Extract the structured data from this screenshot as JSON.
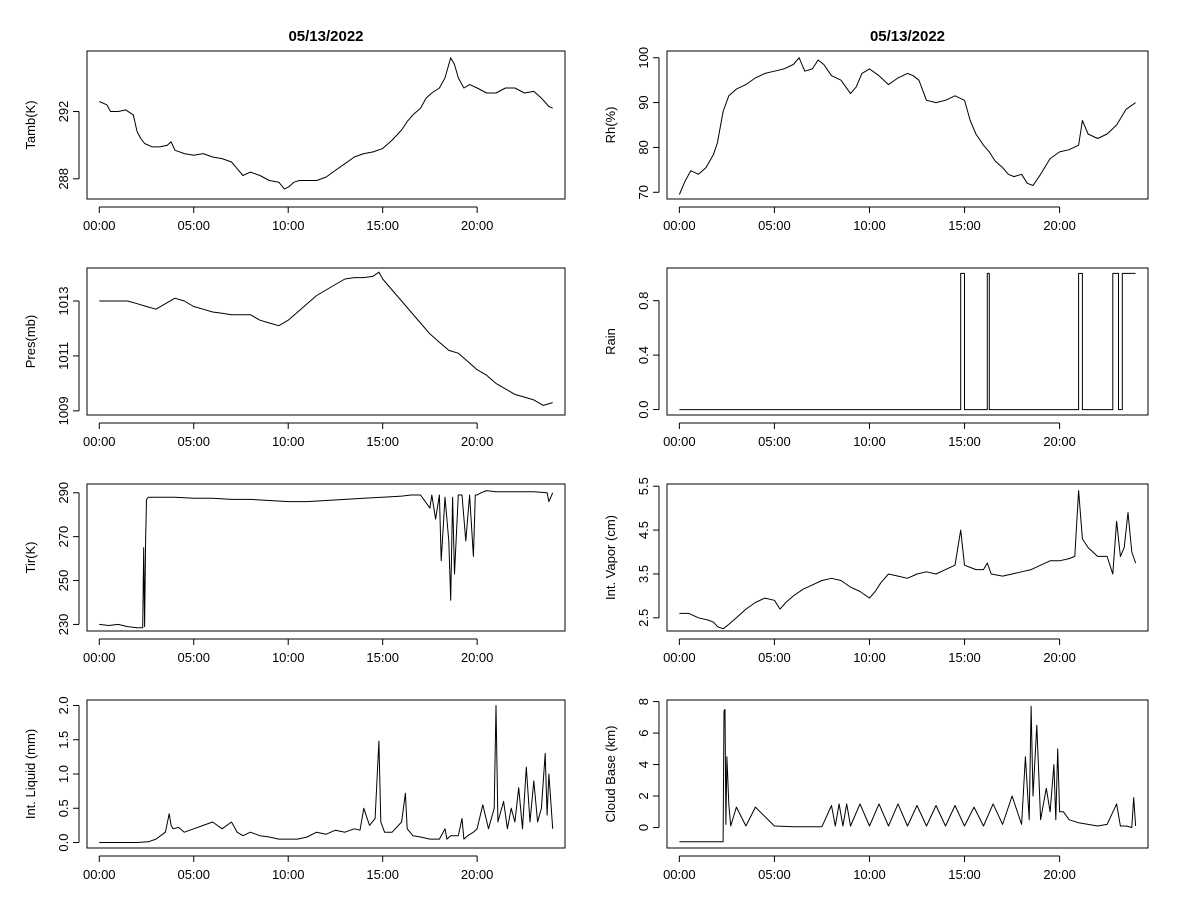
{
  "chart_data": [
    {
      "type": "line",
      "title": "05/13/2022",
      "ylabel": "Tamb(K)",
      "x_ticks": [
        "00:00",
        "05:00",
        "10:00",
        "15:00",
        "20:00"
      ],
      "y_ticks": [
        288,
        292
      ],
      "ylim": [
        286.8,
        295.6
      ],
      "x": [
        0.0,
        0.4,
        0.6,
        1.0,
        1.4,
        1.8,
        2.0,
        2.2,
        2.4,
        2.8,
        3.2,
        3.6,
        3.8,
        4.0,
        4.5,
        5.0,
        5.5,
        6.0,
        6.5,
        7.0,
        7.3,
        7.6,
        8.0,
        8.5,
        9.0,
        9.5,
        9.8,
        10.0,
        10.3,
        10.6,
        11.0,
        11.5,
        12.0,
        12.5,
        13.0,
        13.5,
        14.0,
        14.5,
        15.0,
        15.5,
        16.0,
        16.3,
        16.6,
        17.0,
        17.3,
        17.6,
        18.0,
        18.3,
        18.6,
        18.8,
        19.0,
        19.3,
        19.6,
        20.0,
        20.5,
        21.0,
        21.5,
        22.0,
        22.5,
        23.0,
        23.4,
        23.8,
        24.0
      ],
      "series": [
        {
          "values": [
            292.6,
            292.4,
            292.0,
            292.0,
            292.1,
            291.8,
            290.8,
            290.4,
            290.1,
            289.9,
            289.9,
            290.0,
            290.2,
            289.7,
            289.5,
            289.4,
            289.5,
            289.3,
            289.2,
            289.0,
            288.6,
            288.2,
            288.4,
            288.2,
            287.9,
            287.8,
            287.4,
            287.5,
            287.8,
            287.9,
            287.9,
            287.9,
            288.1,
            288.5,
            288.9,
            289.3,
            289.5,
            289.6,
            289.8,
            290.3,
            290.9,
            291.4,
            291.8,
            292.2,
            292.8,
            293.1,
            293.4,
            294.0,
            295.2,
            294.8,
            294.0,
            293.4,
            293.6,
            293.4,
            293.1,
            293.1,
            293.4,
            293.4,
            293.1,
            293.2,
            292.8,
            292.3,
            292.2
          ]
        }
      ]
    },
    {
      "type": "line",
      "title": "05/13/2022",
      "ylabel": "Rh(%)",
      "x_ticks": [
        "00:00",
        "05:00",
        "10:00",
        "15:00",
        "20:00"
      ],
      "y_ticks": [
        70,
        80,
        90,
        100
      ],
      "ylim": [
        68.5,
        101.5
      ],
      "x": [
        0.0,
        0.3,
        0.6,
        1.0,
        1.4,
        1.8,
        2.0,
        2.3,
        2.6,
        3.0,
        3.5,
        4.0,
        4.5,
        5.0,
        5.5,
        6.0,
        6.3,
        6.6,
        7.0,
        7.3,
        7.6,
        8.0,
        8.5,
        9.0,
        9.3,
        9.6,
        10.0,
        10.5,
        11.0,
        11.5,
        12.0,
        12.3,
        12.6,
        13.0,
        13.5,
        14.0,
        14.5,
        15.0,
        15.3,
        15.6,
        16.0,
        16.3,
        16.6,
        17.0,
        17.3,
        17.6,
        18.0,
        18.3,
        18.6,
        19.0,
        19.5,
        20.0,
        20.5,
        21.0,
        21.2,
        21.5,
        22.0,
        22.5,
        23.0,
        23.5,
        24.0
      ],
      "series": [
        {
          "values": [
            69.5,
            72.5,
            74.8,
            74.0,
            75.5,
            78.5,
            81.0,
            88.0,
            91.5,
            93.0,
            94.0,
            95.5,
            96.5,
            97.0,
            97.5,
            98.5,
            100.0,
            97.0,
            97.5,
            99.5,
            98.5,
            96.0,
            95.0,
            92.0,
            93.5,
            96.5,
            97.5,
            96.0,
            94.0,
            95.5,
            96.5,
            96.0,
            95.0,
            90.5,
            90.0,
            90.5,
            91.5,
            90.5,
            86.0,
            83.0,
            80.5,
            79.0,
            77.0,
            75.5,
            74.0,
            73.5,
            74.0,
            72.0,
            71.5,
            74.0,
            77.5,
            79.0,
            79.5,
            80.5,
            86.0,
            83.0,
            82.0,
            83.0,
            85.0,
            88.5,
            90.0
          ]
        }
      ]
    },
    {
      "type": "line",
      "ylabel": "Pres(mb)",
      "x_ticks": [
        "00:00",
        "05:00",
        "10:00",
        "15:00",
        "20:00"
      ],
      "y_ticks": [
        1009,
        1011,
        1013
      ],
      "ylim": [
        1008.85,
        1014.2
      ],
      "x": [
        0.0,
        0.5,
        1.0,
        1.5,
        2.0,
        2.5,
        3.0,
        3.5,
        4.0,
        4.5,
        5.0,
        5.5,
        6.0,
        6.5,
        7.0,
        7.5,
        8.0,
        8.5,
        9.0,
        9.5,
        10.0,
        10.5,
        11.0,
        11.5,
        12.0,
        12.5,
        13.0,
        13.5,
        14.0,
        14.5,
        14.8,
        15.0,
        15.5,
        16.0,
        16.5,
        17.0,
        17.5,
        18.0,
        18.5,
        19.0,
        19.5,
        20.0,
        20.5,
        21.0,
        21.5,
        22.0,
        22.5,
        23.0,
        23.5,
        24.0
      ],
      "series": [
        {
          "values": [
            1013.0,
            1013.0,
            1013.0,
            1013.0,
            1012.9,
            1012.8,
            1012.7,
            1012.9,
            1013.1,
            1013.0,
            1012.8,
            1012.7,
            1012.6,
            1012.55,
            1012.5,
            1012.5,
            1012.5,
            1012.3,
            1012.2,
            1012.1,
            1012.3,
            1012.6,
            1012.9,
            1013.2,
            1013.4,
            1013.6,
            1013.8,
            1013.85,
            1013.85,
            1013.9,
            1014.05,
            1013.8,
            1013.4,
            1013.0,
            1012.6,
            1012.2,
            1011.8,
            1011.5,
            1011.2,
            1011.1,
            1010.8,
            1010.5,
            1010.3,
            1010.0,
            1009.8,
            1009.6,
            1009.5,
            1009.4,
            1009.2,
            1009.3
          ]
        }
      ]
    },
    {
      "type": "line",
      "ylabel": "Rain",
      "x_ticks": [
        "00:00",
        "05:00",
        "10:00",
        "15:00",
        "20:00"
      ],
      "y_ticks": [
        0.0,
        0.4,
        0.8
      ],
      "ylim": [
        -0.04,
        1.04
      ],
      "x": [
        0.0,
        14.8,
        14.8,
        15.0,
        15.0,
        16.2,
        16.2,
        16.3,
        16.3,
        21.0,
        21.0,
        21.2,
        21.2,
        22.8,
        22.8,
        23.1,
        23.1,
        23.3,
        23.3,
        24.0
      ],
      "series": [
        {
          "values": [
            0,
            0,
            1,
            1,
            0,
            0,
            1,
            1,
            0,
            0,
            1,
            1,
            0,
            0,
            1,
            1,
            0,
            0,
            1,
            1
          ]
        }
      ]
    },
    {
      "type": "line",
      "ylabel": "Tir(K)",
      "x_ticks": [
        "00:00",
        "05:00",
        "10:00",
        "15:00",
        "20:00"
      ],
      "y_ticks": [
        230,
        250,
        270,
        290
      ],
      "ylim": [
        227,
        294
      ],
      "x": [
        0.0,
        0.5,
        1.0,
        1.5,
        2.0,
        2.3,
        2.35,
        2.4,
        2.45,
        2.5,
        2.6,
        2.8,
        3.0,
        4.0,
        5.0,
        6.0,
        7.0,
        8.0,
        9.0,
        10.0,
        11.0,
        12.0,
        13.0,
        14.0,
        15.0,
        16.0,
        16.5,
        17.0,
        17.5,
        17.6,
        17.8,
        18.0,
        18.1,
        18.3,
        18.5,
        18.6,
        18.7,
        18.8,
        19.0,
        19.2,
        19.4,
        19.6,
        19.8,
        19.9,
        20.0,
        20.2,
        20.5,
        21.0,
        22.0,
        23.0,
        23.7,
        23.8,
        24.0
      ],
      "series": [
        {
          "values": [
            230,
            229.5,
            230,
            229,
            228.5,
            228.5,
            265,
            229,
            268,
            287,
            288,
            288,
            288,
            288,
            287.5,
            287.5,
            287,
            287,
            286.5,
            286,
            286,
            286.5,
            287,
            287.5,
            288,
            288.5,
            289,
            289,
            283,
            289,
            278,
            289,
            259,
            288,
            268,
            241,
            288,
            253,
            289,
            289,
            268,
            289,
            261,
            289,
            289,
            290,
            291,
            290.5,
            290.5,
            290.5,
            290,
            286,
            290
          ]
        }
      ]
    },
    {
      "type": "line",
      "ylabel": "Int. Vapor (cm)",
      "x_ticks": [
        "00:00",
        "05:00",
        "10:00",
        "15:00",
        "20:00"
      ],
      "y_ticks": [
        2.5,
        3.5,
        4.5,
        5.5
      ],
      "ylim": [
        2.2,
        5.55
      ],
      "x": [
        0.0,
        0.5,
        1.0,
        1.5,
        1.8,
        2.0,
        2.3,
        2.6,
        3.0,
        3.5,
        4.0,
        4.5,
        5.0,
        5.3,
        5.6,
        6.0,
        6.5,
        7.0,
        7.5,
        8.0,
        8.5,
        9.0,
        9.5,
        10.0,
        10.3,
        10.6,
        11.0,
        11.5,
        12.0,
        12.5,
        13.0,
        13.5,
        14.0,
        14.5,
        14.8,
        15.0,
        15.3,
        15.6,
        16.0,
        16.2,
        16.4,
        17.0,
        17.5,
        18.0,
        18.5,
        19.0,
        19.5,
        20.0,
        20.5,
        20.8,
        21.0,
        21.2,
        21.5,
        22.0,
        22.5,
        22.8,
        23.0,
        23.2,
        23.4,
        23.6,
        23.8,
        24.0
      ],
      "series": [
        {
          "values": [
            2.6,
            2.6,
            2.5,
            2.45,
            2.4,
            2.3,
            2.25,
            2.35,
            2.5,
            2.7,
            2.85,
            2.95,
            2.9,
            2.7,
            2.85,
            3.0,
            3.15,
            3.25,
            3.35,
            3.4,
            3.35,
            3.2,
            3.1,
            2.95,
            3.1,
            3.3,
            3.5,
            3.45,
            3.4,
            3.5,
            3.55,
            3.5,
            3.6,
            3.7,
            4.5,
            3.7,
            3.65,
            3.6,
            3.6,
            3.75,
            3.5,
            3.45,
            3.5,
            3.55,
            3.6,
            3.7,
            3.8,
            3.8,
            3.85,
            3.9,
            5.4,
            4.3,
            4.1,
            3.9,
            3.9,
            3.5,
            4.7,
            3.9,
            4.1,
            4.9,
            4.0,
            3.75
          ]
        }
      ]
    },
    {
      "type": "line",
      "ylabel": "Int. Liquid (mm)",
      "x_ticks": [
        "00:00",
        "05:00",
        "10:00",
        "15:00",
        "20:00"
      ],
      "y_ticks": [
        0.0,
        0.5,
        1.0,
        1.5,
        2.0
      ],
      "ylim": [
        -0.08,
        2.08
      ],
      "x": [
        0.0,
        1.0,
        2.0,
        2.6,
        3.0,
        3.5,
        3.7,
        3.8,
        3.9,
        4.2,
        4.5,
        5.0,
        5.5,
        6.0,
        6.5,
        7.0,
        7.3,
        7.6,
        8.0,
        8.5,
        9.0,
        9.5,
        10.0,
        10.5,
        11.0,
        11.5,
        12.0,
        12.5,
        13.0,
        13.5,
        13.8,
        14.0,
        14.3,
        14.6,
        14.8,
        14.9,
        15.1,
        15.5,
        16.0,
        16.2,
        16.3,
        16.6,
        17.0,
        17.5,
        18.0,
        18.3,
        18.4,
        18.6,
        19.0,
        19.2,
        19.3,
        19.5,
        19.8,
        20.0,
        20.3,
        20.6,
        20.9,
        21.0,
        21.1,
        21.4,
        21.6,
        21.8,
        22.0,
        22.2,
        22.4,
        22.6,
        22.8,
        23.0,
        23.2,
        23.4,
        23.6,
        23.7,
        23.8,
        24.0
      ],
      "series": [
        {
          "values": [
            0.0,
            0.0,
            0.0,
            0.01,
            0.05,
            0.15,
            0.42,
            0.25,
            0.2,
            0.22,
            0.15,
            0.2,
            0.25,
            0.3,
            0.2,
            0.3,
            0.15,
            0.1,
            0.15,
            0.1,
            0.08,
            0.05,
            0.05,
            0.05,
            0.08,
            0.15,
            0.12,
            0.18,
            0.15,
            0.2,
            0.18,
            0.5,
            0.25,
            0.35,
            1.48,
            0.3,
            0.15,
            0.15,
            0.3,
            0.72,
            0.2,
            0.1,
            0.08,
            0.05,
            0.05,
            0.2,
            0.05,
            0.1,
            0.1,
            0.35,
            0.05,
            0.1,
            0.15,
            0.2,
            0.55,
            0.2,
            0.5,
            2.0,
            0.3,
            0.6,
            0.2,
            0.5,
            0.3,
            0.8,
            0.2,
            1.1,
            0.3,
            0.9,
            0.3,
            0.5,
            1.3,
            0.4,
            1.0,
            0.2
          ]
        }
      ]
    },
    {
      "type": "line",
      "ylabel": "Cloud Base (km)",
      "x_ticks": [
        "00:00",
        "05:00",
        "10:00",
        "15:00",
        "20:00"
      ],
      "y_ticks": [
        0,
        2,
        4,
        6,
        8
      ],
      "ylim": [
        -1.3,
        8.1
      ],
      "x": [
        0.0,
        1.0,
        2.0,
        2.3,
        2.35,
        2.4,
        2.45,
        2.5,
        2.6,
        2.7,
        3.0,
        3.5,
        4.0,
        5.0,
        6.0,
        7.0,
        7.5,
        8.0,
        8.2,
        8.4,
        8.6,
        8.8,
        9.0,
        9.5,
        10.0,
        10.5,
        11.0,
        11.5,
        12.0,
        12.5,
        13.0,
        13.5,
        14.0,
        14.5,
        15.0,
        15.5,
        16.0,
        16.5,
        17.0,
        17.5,
        18.0,
        18.2,
        18.4,
        18.5,
        18.6,
        18.8,
        19.0,
        19.3,
        19.5,
        19.7,
        19.8,
        19.9,
        20.0,
        20.2,
        20.5,
        21.0,
        21.5,
        22.0,
        22.5,
        23.0,
        23.2,
        23.5,
        23.8,
        23.9,
        24.0
      ],
      "series": [
        {
          "values": [
            -0.9,
            -0.9,
            -0.9,
            -0.9,
            7.4,
            7.5,
            0.2,
            4.5,
            1.5,
            0.1,
            1.3,
            0.1,
            1.3,
            0.1,
            0.05,
            0.05,
            0.05,
            1.4,
            0.1,
            1.5,
            0.1,
            1.5,
            0.1,
            1.5,
            0.1,
            1.5,
            0.1,
            1.5,
            0.1,
            1.4,
            0.1,
            1.4,
            0.1,
            1.4,
            0.1,
            1.3,
            0.1,
            1.5,
            0.2,
            2.0,
            0.2,
            4.5,
            0.5,
            7.7,
            2.0,
            6.5,
            0.5,
            2.5,
            1.0,
            4.0,
            0.5,
            5.0,
            1.0,
            1.0,
            0.5,
            0.3,
            0.2,
            0.1,
            0.2,
            1.5,
            0.1,
            0.1,
            0.0,
            1.9,
            0.1
          ]
        }
      ]
    }
  ]
}
